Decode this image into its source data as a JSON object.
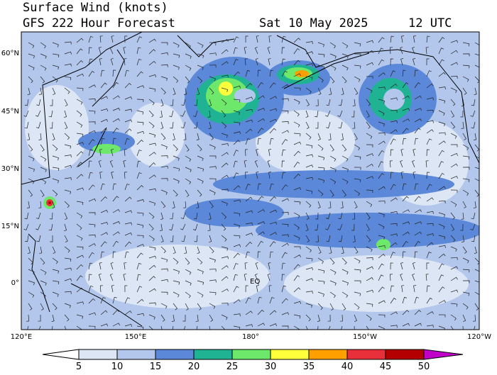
{
  "header": {
    "title": "Surface Wind (knots)",
    "model": "GFS 222 Hour Forecast",
    "date": "Sat 10 May 2025",
    "time": "12 UTC"
  },
  "map": {
    "lat_labels": [
      "60°N",
      "45°N",
      "30°N",
      "15°N",
      "0°"
    ],
    "lon_labels": [
      "120°E",
      "150°E",
      "180°",
      "150°W",
      "120°W"
    ],
    "annotations": [
      "EQ"
    ]
  },
  "colorbar": {
    "ticks": [
      5,
      10,
      15,
      20,
      25,
      30,
      35,
      40,
      45,
      50
    ],
    "colors": [
      "#ffffff",
      "#dde6f4",
      "#b3c7ec",
      "#5b88d8",
      "#1fb394",
      "#6de86a",
      "#ffff3c",
      "#ffa000",
      "#e8303a",
      "#b40000",
      "#c000c8"
    ]
  }
}
